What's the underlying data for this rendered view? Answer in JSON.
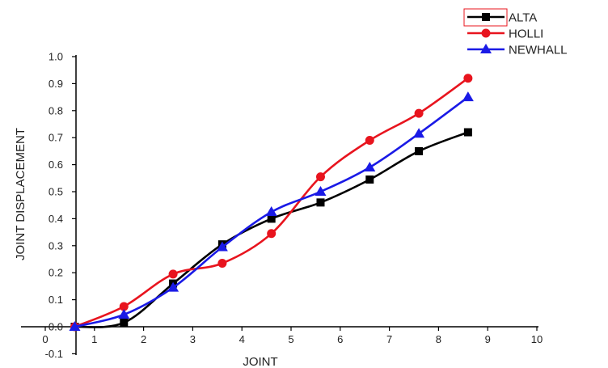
{
  "chart_data": {
    "type": "line",
    "xlabel": "JOINT",
    "ylabel": "JOINT DISPLACEMENT",
    "xlim": [
      0,
      10
    ],
    "ylim": [
      -0.1,
      1.0
    ],
    "x_ticks": [
      "0",
      "1",
      "2",
      "3",
      "4",
      "5",
      "6",
      "7",
      "8",
      "9",
      "10"
    ],
    "y_ticks": [
      "-0.1",
      "0.0",
      "0.1",
      "0.2",
      "0.3",
      "0.4",
      "0.5",
      "0.6",
      "0.7",
      "0.8",
      "0.9",
      "1.0"
    ],
    "grid": false,
    "legend_position": "top-right",
    "series": [
      {
        "name": "ALTA",
        "color": "#000000",
        "marker": "square",
        "x": [
          0.6,
          1.6,
          2.6,
          3.6,
          4.6,
          5.6,
          6.6,
          7.6,
          8.6
        ],
        "y": [
          0.0,
          0.015,
          0.16,
          0.305,
          0.4,
          0.46,
          0.545,
          0.65,
          0.72
        ]
      },
      {
        "name": "HOLLI",
        "color": "#e8141e",
        "marker": "circle",
        "x": [
          0.6,
          1.6,
          2.6,
          3.6,
          4.6,
          5.6,
          6.6,
          7.6,
          8.6
        ],
        "y": [
          0.0,
          0.075,
          0.195,
          0.235,
          0.345,
          0.555,
          0.69,
          0.79,
          0.92
        ]
      },
      {
        "name": "NEWHALL",
        "color": "#1a1ae6",
        "marker": "triangle",
        "x": [
          0.6,
          1.6,
          2.6,
          3.6,
          4.6,
          5.6,
          6.6,
          7.6,
          8.6
        ],
        "y": [
          0.0,
          0.045,
          0.145,
          0.295,
          0.425,
          0.5,
          0.59,
          0.715,
          0.85
        ]
      }
    ]
  }
}
